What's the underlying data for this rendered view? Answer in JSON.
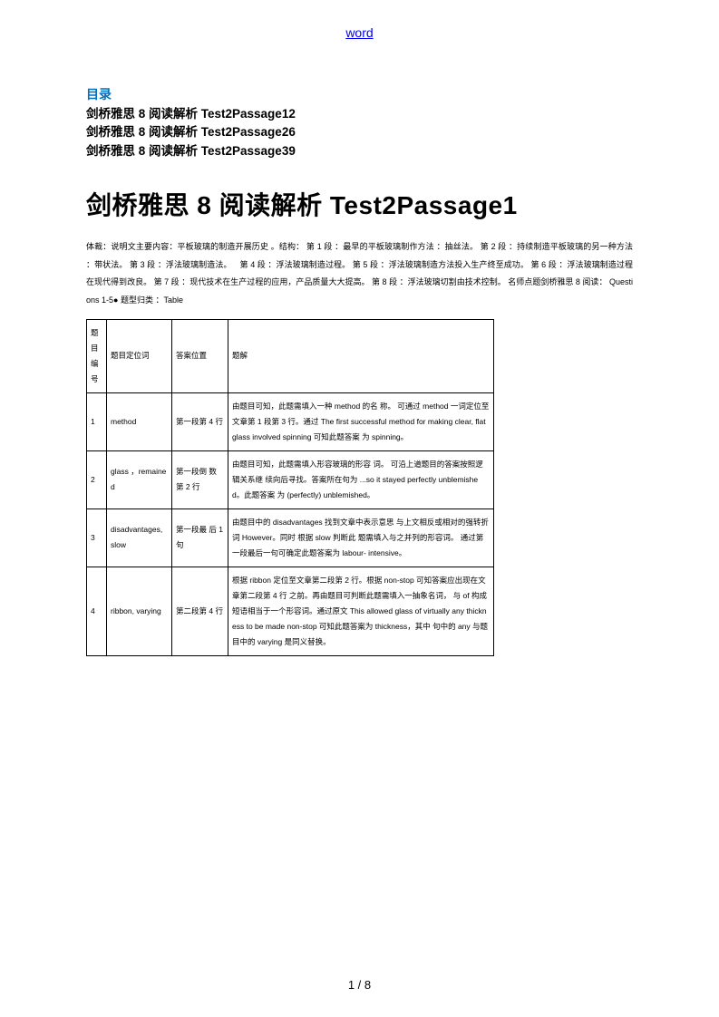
{
  "header": {
    "link_text": "word"
  },
  "toc": {
    "title": "目录",
    "items": [
      "剑桥雅思 8 阅读解析 Test2Passage12",
      "剑桥雅思 8 阅读解析 Test2Passage26",
      "剑桥雅思 8 阅读解析 Test2Passage39"
    ]
  },
  "main": {
    "heading": "剑桥雅思 8 阅读解析 Test2Passage1",
    "body": "体裁：说明文主要内容：平板玻璃的制造开展历史 。结构： 第 1 段 ：最早的平板玻璃制作方法 ：抽丝法。 第 2 段 ：持续制造平板玻璃的另一种方法 ：带状法。 第 3 段 ：浮法玻璃制造法。 第 4 段 ：浮法玻璃制造过程。 第 5 段 ：浮法玻璃制造方法投入生产终至成功。 第 6 段 ：浮法玻璃制造过程在现代得到改良。 第 7 段 ：现代技术在生产过程的应用，产品质量大大提高。 第 8 段 ：浮法玻璃切割由技术控制。  名师点题剑桥雅思 8 阅读：  Questions 1-5● 题型归类 ：Table"
  },
  "table": {
    "headers": [
      "题目编号",
      "题目定位词",
      "答案位置",
      "题解"
    ],
    "rows": [
      {
        "num": "1",
        "keyword": "method",
        "location": "第一段第 4 行",
        "explain": "由题目可知，此题需填入一种 method 的名 称。 可通过 method 一词定位至文章第 1 段第 3 行。通过 The first successful method for making clear, flat glass involved spinning 可知此题答案 为 spinning。"
      },
      {
        "num": "2",
        "keyword": "glass ，remained",
        "location": "第一段倒 数第 2 行",
        "explain": "由题目可知，此题需填入形容玻璃的形容 词。 可沿上道题目的答案按照逻辑关系继 续向后寻找。答案所在句为 ...so it stayed perfectly unblemished。此题答案 为 (perfectly) unblemished。"
      },
      {
        "num": "3",
        "keyword": "disadvantages, slow",
        "location": "第一段最 后 1 句",
        "explain": "由题目中的 disadvantages 找到文章中表示意思 与上文相反或相对的强转折词 However。同时 根据 slow 判断此 题需填入与之并列的形容词。 通过第一段最后一句可确定此题答案为 labour- intensive。"
      },
      {
        "num": "4",
        "keyword": "ribbon, varying",
        "location": "第二段第 4 行",
        "explain": "根据 ribbon 定位至文章第二段第 2 行。根据 non-stop 可知答案应出现在文章第二段第 4 行 之前。再由题目可判断此题需填入一抽象名词， 与 of 构成短语相当于一个形容词。通过原文 This allowed glass of virtually any thickness to be made non-stop 可知此题答案为 thickness，其中 句中的 any 与题目中的 varying 是同义替换。"
      }
    ]
  },
  "footer": {
    "page": "1 / 8"
  }
}
